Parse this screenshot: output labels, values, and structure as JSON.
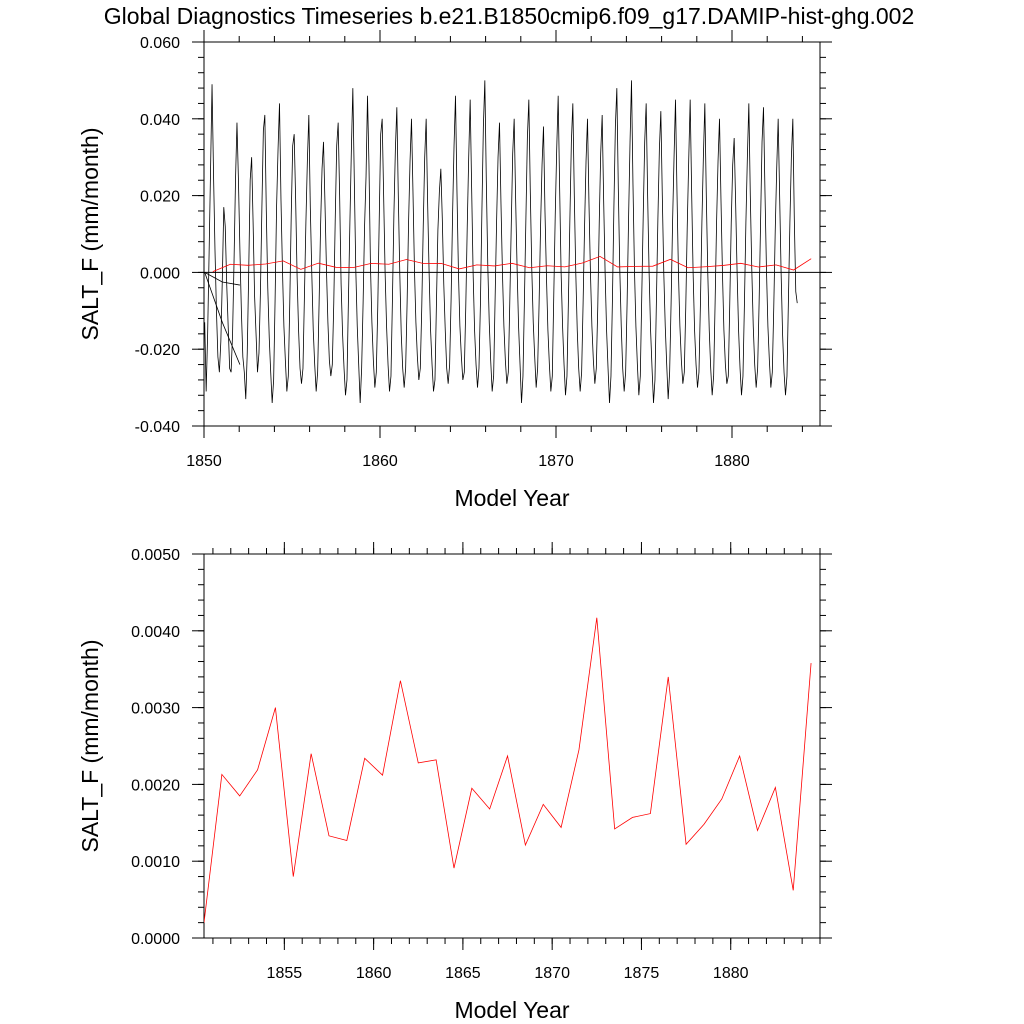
{
  "title": "Global Diagnostics Timeseries b.e21.B1850cmip6.f09_g17.DAMIP-hist-ghg.002",
  "colors": {
    "monthly": "#000000",
    "annual": "#ff0000"
  },
  "chart_data": [
    {
      "type": "line",
      "xlabel": "Model Year",
      "ylabel": "SALT_F (mm/month)",
      "xlim": [
        1850,
        1885
      ],
      "ylim": [
        -0.04,
        0.06
      ],
      "xticks": [
        1850,
        1860,
        1870,
        1880
      ],
      "xtick_labels": [
        "1850",
        "1860",
        "1870",
        "1880"
      ],
      "yticks": [
        -0.04,
        -0.02,
        0.0,
        0.02,
        0.04,
        0.06
      ],
      "ytick_labels": [
        "-0.040",
        "-0.020",
        "0.000",
        "0.020",
        "0.040",
        "0.060"
      ],
      "series": [
        {
          "color": "#000000",
          "x_start": 1850.04,
          "x_step": 0.0833333,
          "values": [
            -0.013,
            -0.031,
            -0.016,
            0.005,
            0.027,
            0.049,
            0.026,
            0.006,
            -0.01,
            -0.022,
            -0.026,
            -0.018,
            -0.002,
            0.017,
            0.012,
            -0.003,
            -0.014,
            -0.025,
            -0.026,
            -0.016,
            0.003,
            0.024,
            0.039,
            0.024,
            0.006,
            -0.01,
            -0.022,
            -0.026,
            -0.033,
            -0.021,
            0.0,
            0.024,
            0.03,
            0.013,
            -0.006,
            -0.016,
            -0.026,
            -0.021,
            -0.005,
            0.017,
            0.037,
            0.041,
            0.016,
            -0.004,
            -0.017,
            -0.026,
            -0.034,
            -0.028,
            -0.007,
            0.017,
            0.032,
            0.044,
            0.019,
            0.001,
            -0.014,
            -0.023,
            -0.031,
            -0.027,
            -0.008,
            0.015,
            0.033,
            0.036,
            0.019,
            -0.001,
            -0.015,
            -0.025,
            -0.029,
            -0.025,
            -0.006,
            0.013,
            0.029,
            0.041,
            0.017,
            0.0,
            -0.015,
            -0.024,
            -0.031,
            -0.026,
            -0.008,
            0.012,
            0.027,
            0.034,
            0.018,
            0.001,
            -0.013,
            -0.023,
            -0.027,
            -0.024,
            -0.008,
            0.014,
            0.033,
            0.039,
            0.02,
            -0.003,
            -0.016,
            -0.025,
            -0.032,
            -0.028,
            -0.007,
            0.013,
            0.032,
            0.048,
            0.024,
            0.001,
            -0.014,
            -0.024,
            -0.034,
            -0.025,
            -0.008,
            0.012,
            0.025,
            0.046,
            0.028,
            0.002,
            -0.013,
            -0.023,
            -0.03,
            -0.026,
            -0.009,
            0.014,
            0.036,
            0.04,
            0.02,
            0.0,
            -0.014,
            -0.024,
            -0.031,
            -0.027,
            -0.007,
            0.015,
            0.032,
            0.043,
            0.02,
            0.0,
            -0.016,
            -0.025,
            -0.03,
            -0.025,
            -0.008,
            0.013,
            0.029,
            0.04,
            0.021,
            0.001,
            -0.013,
            -0.022,
            -0.028,
            -0.025,
            -0.009,
            0.012,
            0.03,
            0.04,
            0.018,
            0.0,
            -0.015,
            -0.024,
            -0.031,
            -0.028,
            -0.008,
            0.011,
            0.021,
            0.027,
            0.014,
            -0.003,
            -0.015,
            -0.025,
            -0.029,
            -0.024,
            -0.007,
            0.015,
            0.033,
            0.046,
            0.021,
            0.0,
            -0.014,
            -0.022,
            -0.028,
            -0.026,
            -0.009,
            0.012,
            0.03,
            0.045,
            0.022,
            0.0,
            -0.015,
            -0.024,
            -0.03,
            -0.025,
            -0.008,
            0.016,
            0.038,
            0.05,
            0.024,
            0.002,
            -0.013,
            -0.023,
            -0.031,
            -0.027,
            -0.007,
            0.013,
            0.03,
            0.039,
            0.018,
            0.0,
            -0.014,
            -0.023,
            -0.029,
            -0.026,
            -0.008,
            0.012,
            0.031,
            0.04,
            0.019,
            0.001,
            -0.014,
            -0.024,
            -0.034,
            -0.027,
            -0.007,
            0.014,
            0.035,
            0.045,
            0.021,
            0.001,
            -0.013,
            -0.022,
            -0.03,
            -0.025,
            -0.008,
            0.012,
            0.028,
            0.038,
            0.016,
            -0.001,
            -0.015,
            -0.024,
            -0.031,
            -0.027,
            -0.006,
            0.015,
            0.032,
            0.046,
            0.022,
            0.0,
            -0.014,
            -0.024,
            -0.032,
            -0.027,
            -0.007,
            0.014,
            0.034,
            0.044,
            0.02,
            0.0,
            -0.015,
            -0.025,
            -0.031,
            -0.026,
            -0.008,
            0.012,
            0.029,
            0.04,
            0.018,
            0.0,
            -0.014,
            -0.023,
            -0.029,
            -0.025,
            -0.009,
            0.013,
            0.031,
            0.041,
            0.019,
            0.0,
            -0.015,
            -0.025,
            -0.034,
            -0.027,
            -0.007,
            0.017,
            0.038,
            0.048,
            0.022,
            0.001,
            -0.014,
            -0.025,
            -0.031,
            -0.026,
            -0.008,
            0.014,
            0.034,
            0.05,
            0.023,
            0.001,
            -0.014,
            -0.024,
            -0.032,
            -0.027,
            -0.006,
            0.015,
            0.034,
            0.044,
            0.02,
            0.0,
            -0.015,
            -0.025,
            -0.034,
            -0.028,
            -0.007,
            0.014,
            0.032,
            0.042,
            0.02,
            0.0,
            -0.014,
            -0.024,
            -0.033,
            -0.026,
            -0.008,
            0.013,
            0.03,
            0.045,
            0.021,
            0.0,
            -0.014,
            -0.023,
            -0.029,
            -0.026,
            -0.009,
            0.012,
            0.029,
            0.045,
            0.021,
            0.0,
            -0.015,
            -0.024,
            -0.03,
            -0.026,
            -0.008,
            0.013,
            0.03,
            0.044,
            0.02,
            0.0,
            -0.015,
            -0.025,
            -0.032,
            -0.027,
            -0.008,
            0.013,
            0.029,
            0.04,
            0.019,
            0.0,
            -0.015,
            -0.024,
            -0.029,
            -0.027,
            -0.008,
            0.013,
            0.028,
            0.035,
            0.018,
            0.0,
            -0.015,
            -0.025,
            -0.032,
            -0.027,
            -0.008,
            0.013,
            0.03,
            0.044,
            0.02,
            0.001,
            -0.014,
            -0.024,
            -0.03,
            -0.025,
            -0.008,
            0.013,
            0.034,
            0.043,
            0.021,
            0.001,
            -0.014,
            -0.023,
            -0.03,
            -0.026,
            -0.009,
            0.011,
            0.027,
            0.04,
            0.02,
            0.0,
            -0.016,
            -0.026,
            -0.032,
            -0.027,
            -0.007,
            0.013,
            0.03,
            0.04,
            0.014,
            -0.005,
            -0.008
          ]
        },
        {
          "color": "#000000",
          "x_start": 1850.04,
          "x_step": 1.0,
          "values": [
            0.0,
            -0.0025,
            -0.0033
          ]
        },
        {
          "color": "#000000",
          "x_start": 1850.04,
          "x_step": 1.0,
          "values": [
            0.0,
            -0.013,
            -0.024
          ]
        },
        {
          "color": "#ff0000",
          "x_start": 1850.5,
          "x_step": 1.0,
          "values": [
            0.0002,
            0.00213,
            0.00185,
            0.00219,
            0.003,
            0.0008,
            0.0024,
            0.00133,
            0.00127,
            0.00234,
            0.00212,
            0.00335,
            0.00228,
            0.00232,
            0.00091,
            0.00195,
            0.00168,
            0.00237,
            0.00121,
            0.00174,
            0.00144,
            0.00245,
            0.00417,
            0.00142,
            0.00157,
            0.00162,
            0.0034,
            0.00122,
            0.00148,
            0.00181,
            0.00237,
            0.0014,
            0.00196,
            0.00062,
            0.00358
          ]
        }
      ]
    },
    {
      "type": "line",
      "xlabel": "Model Year",
      "ylabel": "SALT_F (mm/month)",
      "xlim": [
        1850.5,
        1885
      ],
      "ylim": [
        0.0,
        0.005
      ],
      "xticks": [
        1855,
        1860,
        1865,
        1870,
        1875,
        1880
      ],
      "xtick_labels": [
        "1855",
        "1860",
        "1865",
        "1870",
        "1875",
        "1880"
      ],
      "yticks": [
        0.0,
        0.001,
        0.002,
        0.003,
        0.004,
        0.005
      ],
      "ytick_labels": [
        "0.0000",
        "0.0010",
        "0.0020",
        "0.0030",
        "0.0040",
        "0.0050"
      ],
      "series": [
        {
          "color": "#ff0000",
          "x_start": 1850.5,
          "x_step": 1.0,
          "values": [
            0.0002,
            0.00213,
            0.00185,
            0.00219,
            0.003,
            0.0008,
            0.0024,
            0.00133,
            0.00127,
            0.00234,
            0.00212,
            0.00335,
            0.00228,
            0.00232,
            0.00091,
            0.00195,
            0.00168,
            0.00237,
            0.00121,
            0.00174,
            0.00144,
            0.00245,
            0.00417,
            0.00142,
            0.00157,
            0.00162,
            0.0034,
            0.00122,
            0.00148,
            0.00181,
            0.00237,
            0.0014,
            0.00196,
            0.00062,
            0.00358
          ]
        }
      ]
    }
  ]
}
